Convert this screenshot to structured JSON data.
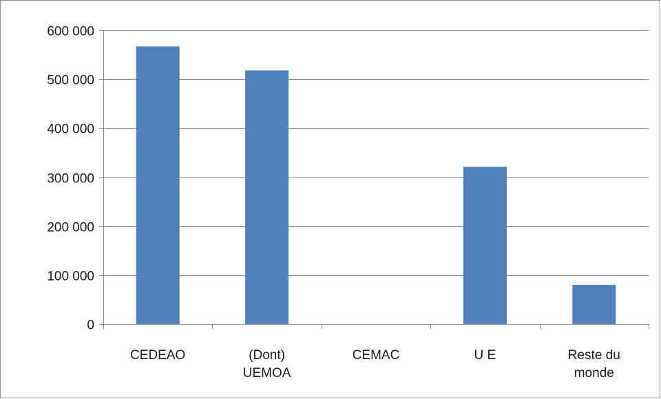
{
  "chart_data": {
    "type": "bar",
    "categories": [
      [
        "CEDEAO"
      ],
      [
        "(Dont)",
        "UEMOA"
      ],
      [
        "CEMAC"
      ],
      [
        "U E"
      ],
      [
        "Reste du",
        "monde"
      ]
    ],
    "values": [
      567000,
      518000,
      0,
      321000,
      80000
    ],
    "ylim": [
      0,
      600000
    ],
    "yticks": [
      0,
      100000,
      200000,
      300000,
      400000,
      500000,
      600000
    ],
    "ytick_labels": [
      "0",
      "100 000",
      "200 000",
      "300 000",
      "400 000",
      "500 000",
      "600 000"
    ],
    "grid": true,
    "bar_color": "#4f81bd",
    "grid_color": "#8c8c8c",
    "axis_color": "#8c8c8c"
  }
}
